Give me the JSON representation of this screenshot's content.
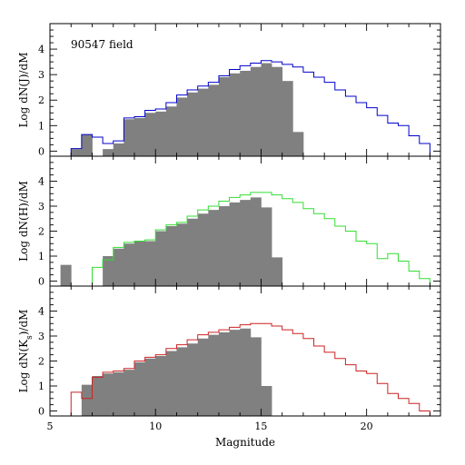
{
  "chart_data": {
    "type": "bar",
    "x_axis": {
      "label": "Magnitude",
      "range": [
        5,
        23.5
      ],
      "major_ticks": [
        5,
        10,
        15,
        20
      ],
      "tick_labels": [
        "5",
        "10",
        "15",
        "20"
      ]
    },
    "annotation": "90547 field",
    "bin_width": 0.5,
    "panels": [
      {
        "id": "J",
        "ylabel": "Log dN(J)/dM",
        "ylim": [
          -0.2,
          5
        ],
        "y_ticks": [
          0,
          1,
          2,
          3,
          4
        ],
        "filled_color": "#808080",
        "line_color": "#0000cc",
        "filled": {
          "bin_starts": [
            6.0,
            6.5,
            7.5,
            8.0,
            8.5,
            9.0,
            9.5,
            10.0,
            10.5,
            11.0,
            11.5,
            12.0,
            12.5,
            13.0,
            13.5,
            14.0,
            14.5,
            15.0,
            15.5,
            16.0,
            16.5
          ],
          "values": [
            0.08,
            0.65,
            0.08,
            0.3,
            1.25,
            1.3,
            1.5,
            1.55,
            1.75,
            2.1,
            2.3,
            2.45,
            2.6,
            2.9,
            3.05,
            3.15,
            3.3,
            3.45,
            3.3,
            2.75,
            0.75
          ]
        },
        "outline": {
          "bin_starts": [
            6.0,
            6.5,
            7.0,
            7.5,
            8.0,
            8.5,
            9.0,
            9.5,
            10.0,
            10.5,
            11.0,
            11.5,
            12.0,
            12.5,
            13.0,
            13.5,
            14.0,
            14.5,
            15.0,
            15.5,
            16.0,
            16.5,
            17.0,
            17.5,
            18.0,
            18.5,
            19.0,
            19.5,
            20.0,
            20.5,
            21.0,
            21.5,
            22.0,
            22.5
          ],
          "values": [
            0.1,
            0.65,
            0.55,
            0.3,
            0.4,
            1.3,
            1.35,
            1.6,
            1.65,
            1.9,
            2.2,
            2.4,
            2.55,
            2.7,
            2.95,
            3.2,
            3.35,
            3.45,
            3.55,
            3.5,
            3.4,
            3.3,
            3.1,
            2.9,
            2.7,
            2.4,
            2.15,
            1.9,
            1.7,
            1.4,
            1.1,
            1.0,
            0.6,
            0.3
          ]
        }
      },
      {
        "id": "H",
        "ylabel": "Log dN(H)/dM",
        "ylim": [
          -0.2,
          5
        ],
        "y_ticks": [
          0,
          1,
          2,
          3,
          4
        ],
        "filled_color": "#808080",
        "line_color": "#33dd33",
        "filled": {
          "bin_starts": [
            5.5,
            7.5,
            8.0,
            8.5,
            9.0,
            9.5,
            10.0,
            10.5,
            11.0,
            11.5,
            12.0,
            12.5,
            13.0,
            13.5,
            14.0,
            14.5,
            15.0,
            15.5
          ],
          "values": [
            0.65,
            1.0,
            1.3,
            1.5,
            1.6,
            1.6,
            2.0,
            2.2,
            2.3,
            2.5,
            2.7,
            2.85,
            3.0,
            3.15,
            3.25,
            3.35,
            2.95,
            0.95
          ]
        },
        "outline": {
          "bin_starts": [
            7.0,
            7.5,
            8.0,
            8.5,
            9.0,
            9.5,
            10.0,
            10.5,
            11.0,
            11.5,
            12.0,
            12.5,
            13.0,
            13.5,
            14.0,
            14.5,
            15.0,
            15.5,
            16.0,
            16.5,
            17.0,
            17.5,
            18.0,
            18.5,
            19.0,
            19.5,
            20.0,
            20.5,
            21.0,
            21.5,
            22.0,
            22.5
          ],
          "values": [
            0.55,
            0.85,
            1.35,
            1.55,
            1.6,
            1.65,
            2.05,
            2.25,
            2.35,
            2.6,
            2.85,
            3.0,
            3.2,
            3.35,
            3.45,
            3.55,
            3.55,
            3.45,
            3.3,
            3.15,
            2.9,
            2.7,
            2.5,
            2.2,
            2.0,
            1.6,
            1.5,
            0.9,
            1.1,
            0.8,
            0.4,
            0.1
          ]
        }
      },
      {
        "id": "Ks",
        "ylabel": "Log dN(K",
        "ylabel_sub": "s",
        "ylabel_tail": ")/dM",
        "ylim": [
          -0.2,
          5
        ],
        "y_ticks": [
          0,
          1,
          2,
          3,
          4
        ],
        "filled_color": "#808080",
        "line_color": "#cc2222",
        "filled": {
          "bin_starts": [
            6.5,
            7.0,
            7.5,
            8.0,
            8.5,
            9.0,
            9.5,
            10.0,
            10.5,
            11.0,
            11.5,
            12.0,
            12.5,
            13.0,
            13.5,
            14.0,
            14.5,
            15.0
          ],
          "values": [
            1.05,
            1.4,
            1.5,
            1.55,
            1.65,
            1.95,
            2.1,
            2.2,
            2.4,
            2.55,
            2.7,
            2.9,
            3.05,
            3.15,
            3.25,
            3.3,
            2.95,
            1.0
          ]
        },
        "outline": {
          "bin_starts": [
            6.0,
            6.5,
            7.0,
            7.5,
            8.0,
            8.5,
            9.0,
            9.5,
            10.0,
            10.5,
            11.0,
            11.5,
            12.0,
            12.5,
            13.0,
            13.5,
            14.0,
            14.5,
            15.0,
            15.5,
            16.0,
            16.5,
            17.0,
            17.5,
            18.0,
            18.5,
            19.0,
            19.5,
            20.0,
            20.5,
            21.0,
            21.5,
            22.0,
            22.5
          ],
          "values": [
            0.75,
            0.5,
            1.35,
            1.55,
            1.6,
            1.7,
            2.0,
            2.15,
            2.25,
            2.5,
            2.65,
            2.85,
            3.05,
            3.15,
            3.25,
            3.35,
            3.45,
            3.5,
            3.5,
            3.4,
            3.25,
            3.1,
            2.9,
            2.6,
            2.35,
            2.1,
            1.85,
            1.6,
            1.5,
            1.1,
            0.7,
            0.5,
            0.3,
            0.0
          ]
        }
      }
    ]
  }
}
